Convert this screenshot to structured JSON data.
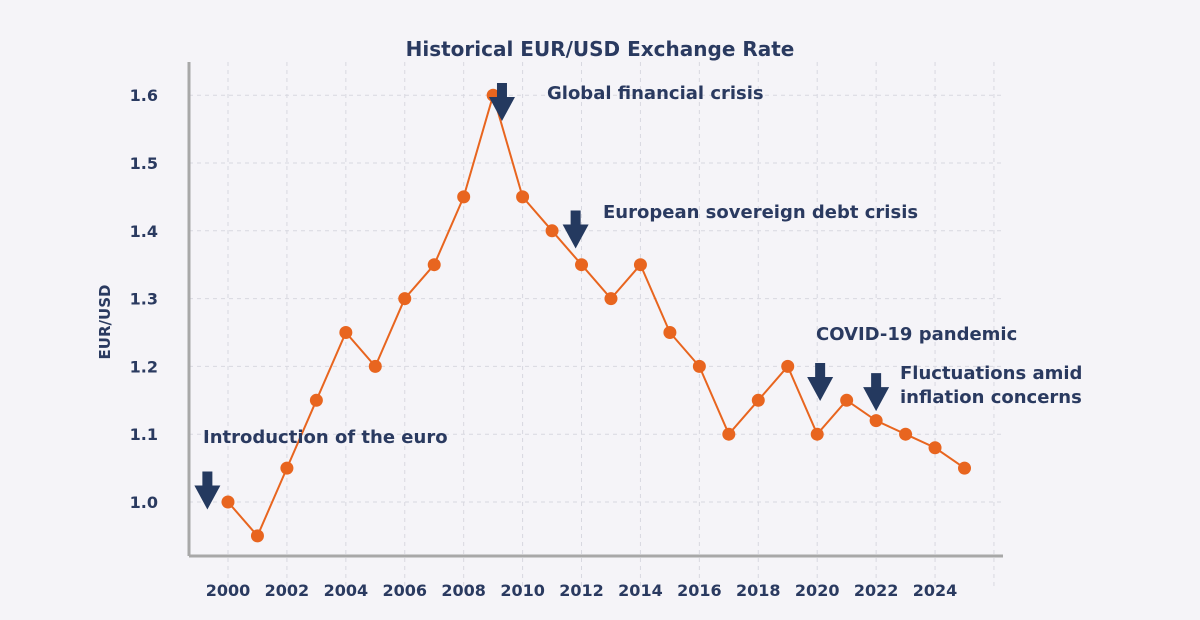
{
  "chart_data": {
    "type": "line",
    "title": "Historical EUR/USD Exchange Rate",
    "xlabel": "",
    "ylabel": "EUR/USD",
    "x": [
      2000,
      2001,
      2002,
      2003,
      2004,
      2005,
      2006,
      2007,
      2008,
      2009,
      2010,
      2011,
      2012,
      2013,
      2014,
      2015,
      2016,
      2017,
      2018,
      2019,
      2020,
      2021,
      2022,
      2023,
      2024,
      2025
    ],
    "values": [
      1.0,
      0.95,
      1.05,
      1.15,
      1.25,
      1.2,
      1.3,
      1.35,
      1.45,
      1.6,
      1.45,
      1.4,
      1.35,
      1.3,
      1.35,
      1.25,
      1.2,
      1.1,
      1.15,
      1.2,
      1.1,
      1.15,
      1.12,
      1.1,
      1.08,
      1.05
    ],
    "ylim": [
      0.93,
      1.65
    ],
    "xlim": [
      1998.7,
      2026.3
    ],
    "yticks": [
      "1.0",
      "1.1",
      "1.2",
      "1.3",
      "1.4",
      "1.5",
      "1.6"
    ],
    "xticks": [
      "2000",
      "2002",
      "2004",
      "2006",
      "2008",
      "2010",
      "2012",
      "2014",
      "2016",
      "2018",
      "2020",
      "2022",
      "2024"
    ],
    "grid": true,
    "line_color": "#e8651f",
    "text_color": "#2a3a60",
    "annotations": [
      {
        "lines": [
          "Introduction of the euro"
        ],
        "year": 1999.3,
        "arrow_top_value": 1.045
      },
      {
        "lines": [
          "Global financial crisis"
        ],
        "year": 2009.3,
        "arrow_top_value": 1.618
      },
      {
        "lines": [
          "European sovereign debt crisis"
        ],
        "year": 2011.8,
        "arrow_top_value": 1.43
      },
      {
        "lines": [
          "COVID-19 pandemic"
        ],
        "year": 2020.1,
        "arrow_top_value": 1.205
      },
      {
        "lines": [
          "Fluctuations amid",
          "inflation concerns"
        ],
        "year": 2022.0,
        "arrow_top_value": 1.19
      }
    ]
  }
}
